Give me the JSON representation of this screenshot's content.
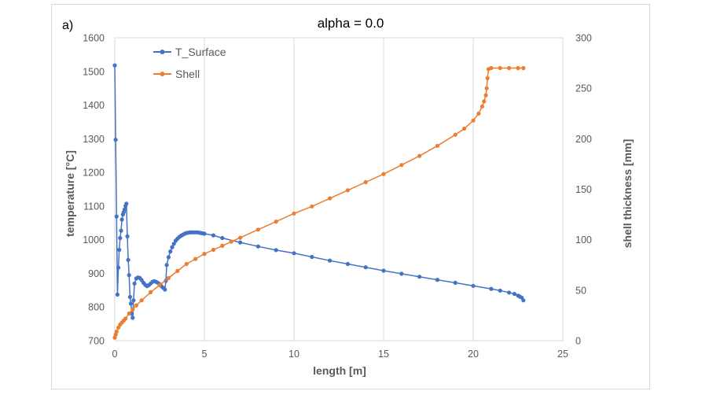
{
  "chart_data": {
    "type": "line",
    "panel_label": "a)",
    "title": "alpha = 0.0",
    "xlabel": "length [m]",
    "ylabel": "temperature [°C]",
    "y2label": "shell thickness [mm]",
    "xlim": [
      0,
      25
    ],
    "ylim": [
      700,
      1600
    ],
    "y2lim": [
      0,
      300
    ],
    "x_ticks": [
      0,
      5,
      10,
      15,
      20,
      25
    ],
    "y_ticks": [
      700,
      800,
      900,
      1000,
      1100,
      1200,
      1300,
      1400,
      1500,
      1600
    ],
    "y2_ticks": [
      0,
      50,
      100,
      150,
      200,
      250,
      300
    ],
    "grid": "vertical",
    "legend_position": "top-left",
    "series": [
      {
        "name": "T_Surface",
        "axis": "left",
        "color": "#4472c4",
        "x": [
          0.0,
          0.05,
          0.1,
          0.15,
          0.2,
          0.25,
          0.3,
          0.35,
          0.4,
          0.45,
          0.5,
          0.55,
          0.6,
          0.65,
          0.7,
          0.75,
          0.8,
          0.85,
          0.9,
          0.95,
          1.0,
          1.05,
          1.1,
          1.2,
          1.3,
          1.4,
          1.5,
          1.6,
          1.7,
          1.8,
          1.9,
          2.0,
          2.1,
          2.2,
          2.3,
          2.4,
          2.5,
          2.6,
          2.7,
          2.8,
          2.85,
          2.9,
          3.0,
          3.1,
          3.2,
          3.3,
          3.4,
          3.5,
          3.6,
          3.7,
          3.8,
          3.9,
          4.0,
          4.1,
          4.2,
          4.3,
          4.4,
          4.5,
          4.6,
          4.7,
          4.8,
          4.9,
          5.0,
          5.5,
          6.0,
          7.0,
          8.0,
          9.0,
          10.0,
          11.0,
          12.0,
          13.0,
          14.0,
          15.0,
          16.0,
          17.0,
          18.0,
          19.0,
          20.0,
          21.0,
          21.5,
          22.0,
          22.3,
          22.5,
          22.6,
          22.7,
          22.8
        ],
        "values": [
          1518,
          1297,
          1069,
          837,
          917,
          970,
          1005,
          1027,
          1060,
          1075,
          1082,
          1090,
          1100,
          1107,
          1010,
          940,
          895,
          830,
          810,
          780,
          768,
          820,
          870,
          885,
          888,
          886,
          880,
          872,
          866,
          862,
          865,
          870,
          875,
          877,
          875,
          872,
          868,
          862,
          857,
          852,
          878,
          925,
          948,
          965,
          978,
          988,
          997,
          1003,
          1008,
          1012,
          1015,
          1018,
          1020,
          1021,
          1022,
          1022,
          1022,
          1022,
          1022,
          1021,
          1020,
          1019,
          1018,
          1013,
          1005,
          992,
          980,
          969,
          960,
          949,
          938,
          928,
          918,
          908,
          899,
          890,
          881,
          872,
          863,
          854,
          849,
          843,
          839,
          834,
          831,
          828,
          820
        ]
      },
      {
        "name": "Shell",
        "axis": "right",
        "color": "#ed7d31",
        "x": [
          0.0,
          0.05,
          0.1,
          0.2,
          0.3,
          0.4,
          0.5,
          0.6,
          0.8,
          1.0,
          1.2,
          1.5,
          2.0,
          2.5,
          3.0,
          3.5,
          4.0,
          4.5,
          5.0,
          5.5,
          6.0,
          6.5,
          7.0,
          8.0,
          9.0,
          10.0,
          11.0,
          12.0,
          13.0,
          14.0,
          15.0,
          16.0,
          17.0,
          18.0,
          19.0,
          19.5,
          20.0,
          20.3,
          20.5,
          20.6,
          20.7,
          20.75,
          20.8,
          20.85,
          21.0,
          21.5,
          22.0,
          22.5,
          22.8
        ],
        "values": [
          3,
          6,
          9,
          13,
          16,
          18,
          20,
          22,
          27,
          31,
          35,
          40,
          48,
          55,
          62,
          69,
          76,
          81,
          86,
          90,
          94,
          98,
          102,
          110,
          118,
          126,
          133,
          141,
          149,
          157,
          165,
          174,
          183,
          193,
          204,
          210,
          218,
          225,
          232,
          237,
          243,
          250,
          260,
          269,
          270,
          270,
          270,
          270,
          270
        ]
      }
    ]
  }
}
